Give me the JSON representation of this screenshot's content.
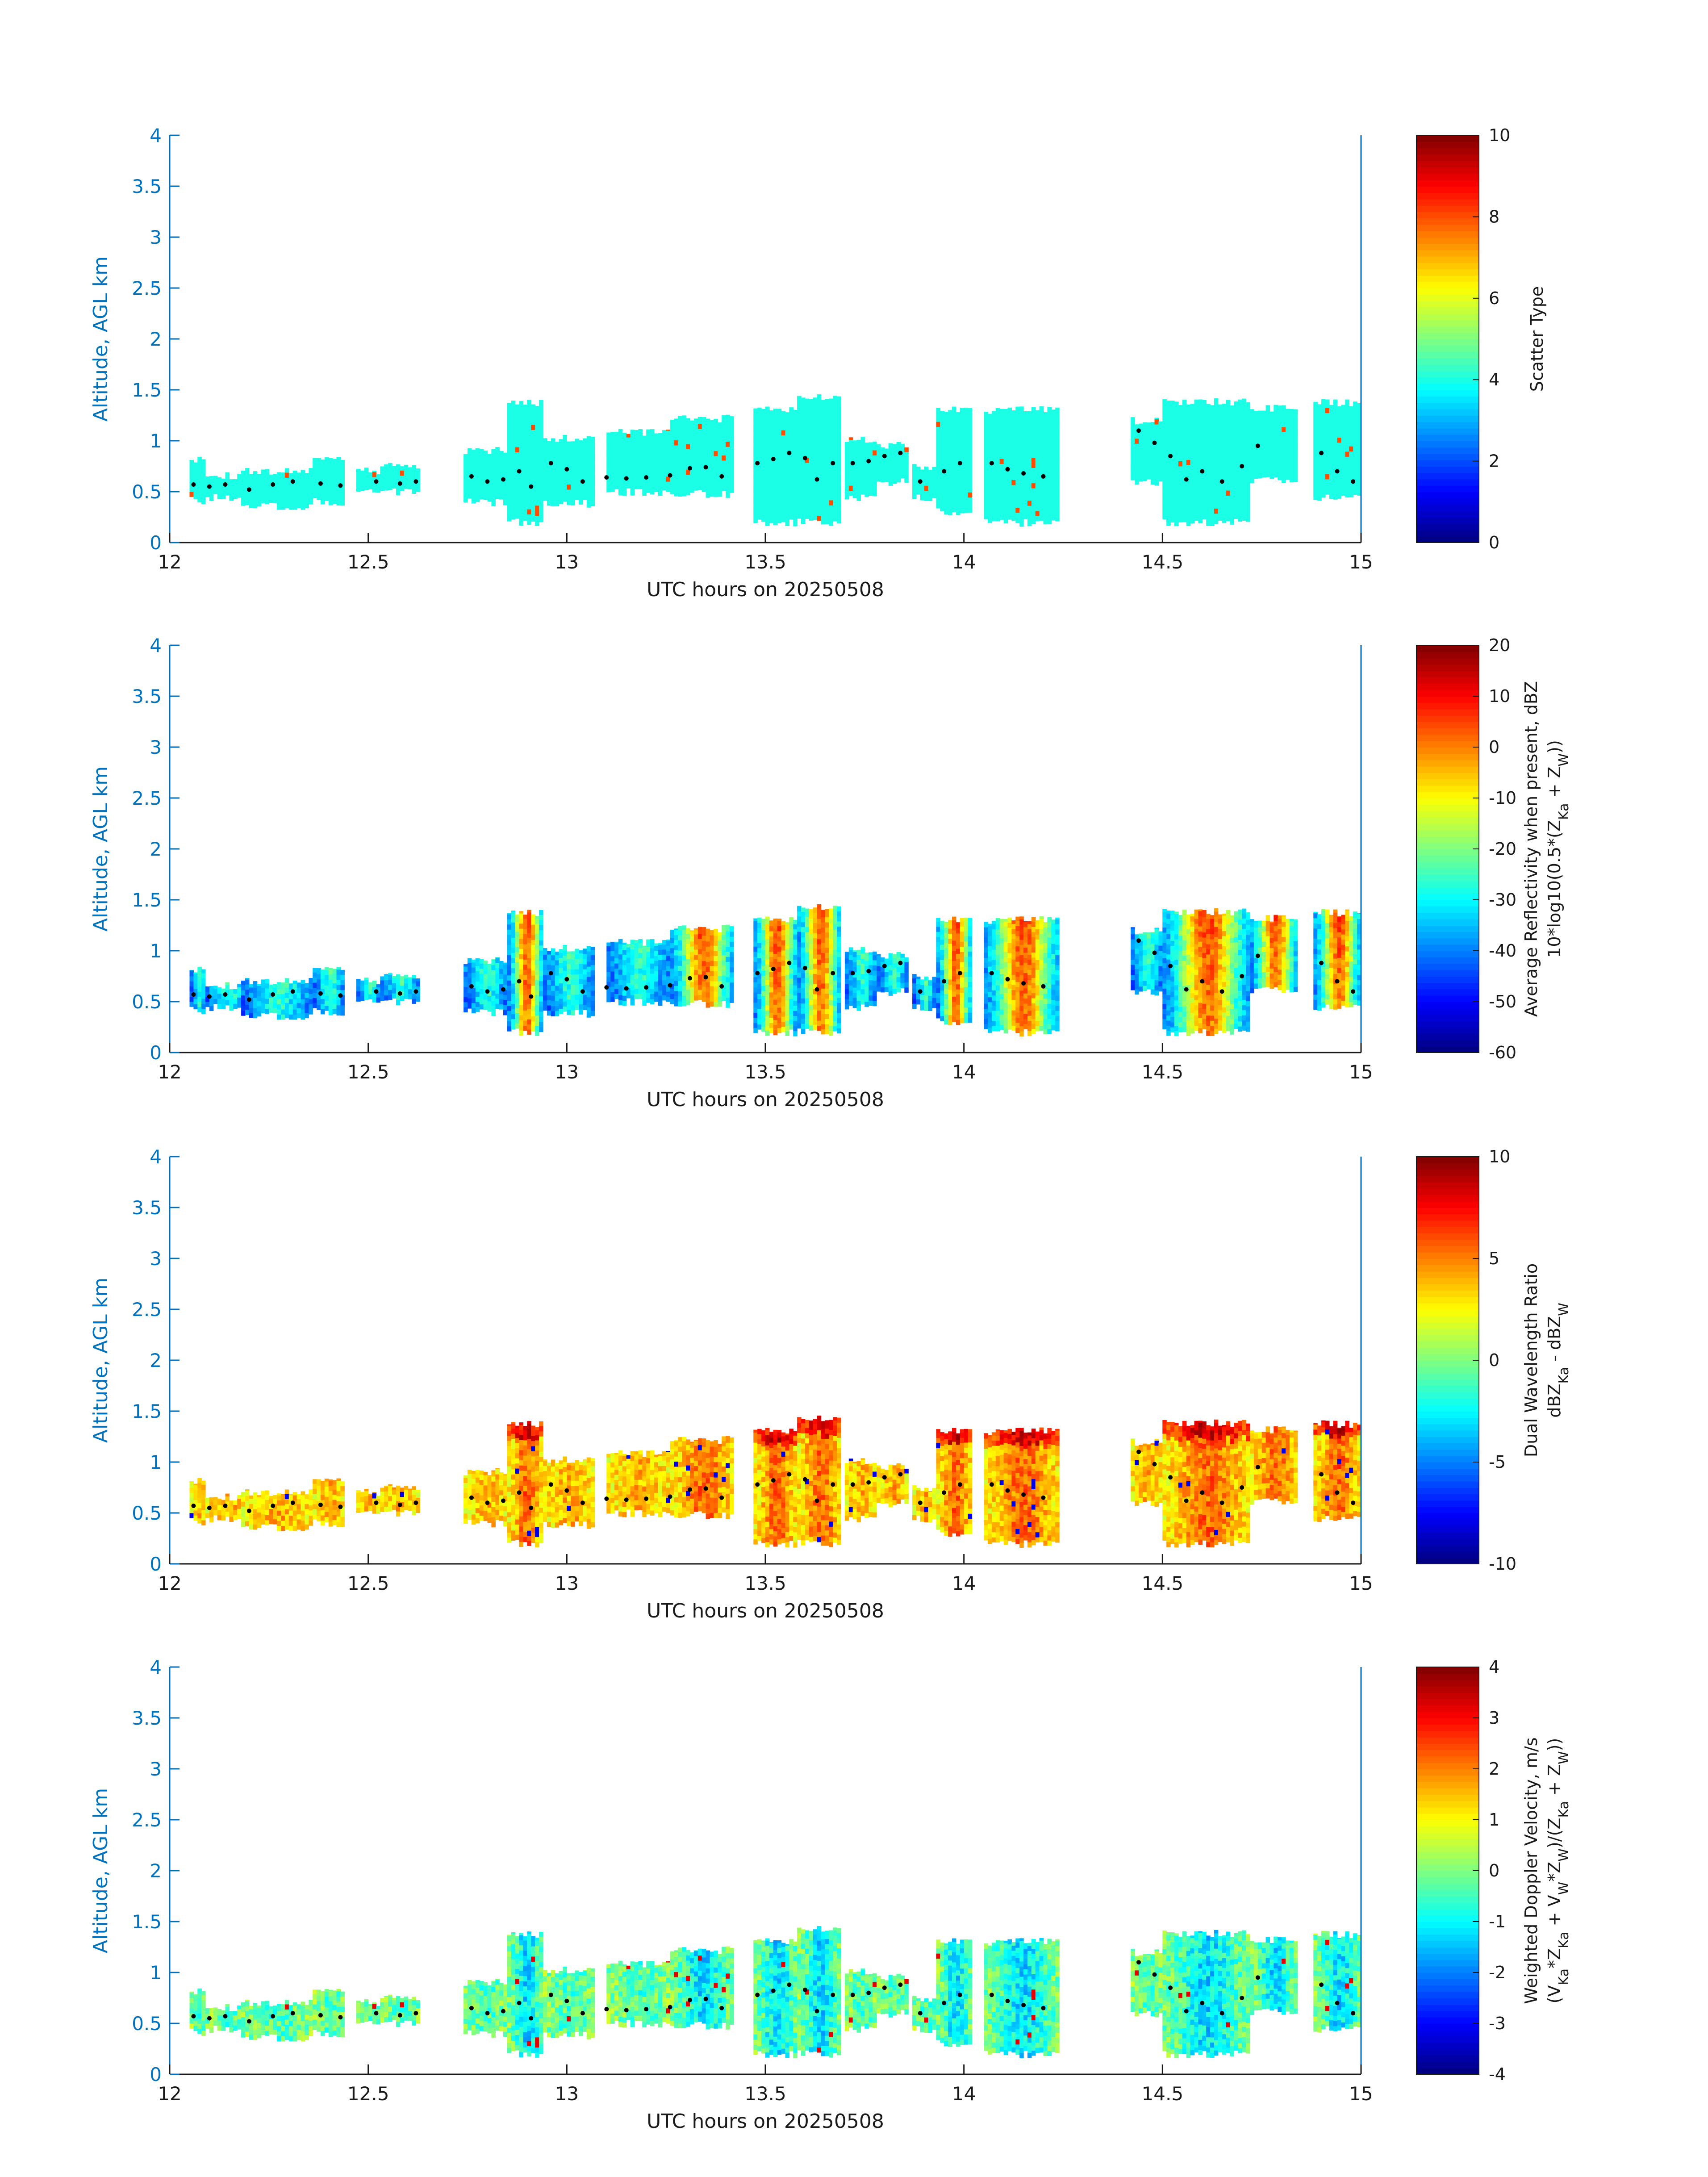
{
  "colors": {
    "axis_blue": "#0072bd",
    "frame": "#1a1a1a",
    "marker": "#000000",
    "colormap": "jet"
  },
  "chart_data": [
    {
      "type": "heatmap",
      "title": "",
      "xlabel": "UTC hours on 20250508",
      "ylabel": "Altitude, AGL km",
      "xlim": [
        12,
        15
      ],
      "ylim": [
        0,
        4
      ],
      "xticks": [
        "12",
        "12.5",
        "13",
        "13.5",
        "14",
        "14.5",
        "15"
      ],
      "yticks": [
        "0",
        "0.5",
        "1",
        "1.5",
        "2",
        "2.5",
        "3",
        "3.5",
        "4"
      ],
      "colorbar": {
        "label": "Scatter Type",
        "label_line2": "",
        "range": [
          0,
          10
        ],
        "ticks": [
          "0",
          "2",
          "4",
          "6",
          "8",
          "10"
        ]
      },
      "field": "scatter_type",
      "marker": "cloud-base dots"
    },
    {
      "type": "heatmap",
      "title": "",
      "xlabel": "UTC hours on 20250508",
      "ylabel": "Altitude, AGL km",
      "xlim": [
        12,
        15
      ],
      "ylim": [
        0,
        4
      ],
      "xticks": [
        "12",
        "12.5",
        "13",
        "13.5",
        "14",
        "14.5",
        "15"
      ],
      "yticks": [
        "0",
        "0.5",
        "1",
        "1.5",
        "2",
        "2.5",
        "3",
        "3.5",
        "4"
      ],
      "colorbar": {
        "label": "Average Reflectivity when present, dBZ",
        "label_line2": "10*log10(0.5*(Z_Ka + Z_W))",
        "range": [
          -60,
          20
        ],
        "ticks": [
          "-60",
          "-50",
          "-40",
          "-30",
          "-20",
          "-10",
          "0",
          "10",
          "20"
        ]
      },
      "field": "reflectivity",
      "marker": "cloud-base dots"
    },
    {
      "type": "heatmap",
      "title": "",
      "xlabel": "UTC hours on 20250508",
      "ylabel": "Altitude, AGL km",
      "xlim": [
        12,
        15
      ],
      "ylim": [
        0,
        4
      ],
      "xticks": [
        "12",
        "12.5",
        "13",
        "13.5",
        "14",
        "14.5",
        "15"
      ],
      "yticks": [
        "0",
        "0.5",
        "1",
        "1.5",
        "2",
        "2.5",
        "3",
        "3.5",
        "4"
      ],
      "colorbar": {
        "label": "Dual Wavelength Ratio",
        "label_line2": "dBZ_Ka - dBZ_W",
        "range": [
          -10,
          10
        ],
        "ticks": [
          "-10",
          "-5",
          "0",
          "5",
          "10"
        ]
      },
      "field": "dwr",
      "marker": "cloud-base dots"
    },
    {
      "type": "heatmap",
      "title": "",
      "xlabel": "UTC hours on 20250508",
      "ylabel": "Altitude, AGL km",
      "xlim": [
        12,
        15
      ],
      "ylim": [
        0,
        4
      ],
      "xticks": [
        "12",
        "12.5",
        "13",
        "13.5",
        "14",
        "14.5",
        "15"
      ],
      "yticks": [
        "0",
        "0.5",
        "1",
        "1.5",
        "2",
        "2.5",
        "3",
        "3.5",
        "4"
      ],
      "colorbar": {
        "label": "Weighted Doppler Velocity, m/s",
        "label_line2": "(V_Ka*Z_Ka + V_W*Z_W)/(Z_Ka + Z_W))",
        "range": [
          -4,
          4
        ],
        "ticks": [
          "-4",
          "-3",
          "-2",
          "-1",
          "0",
          "1",
          "2",
          "3",
          "4"
        ]
      },
      "field": "velocity",
      "marker": "cloud-base dots"
    }
  ],
  "cloud_segments": [
    {
      "t0": 12.05,
      "t1": 12.09,
      "bot": 0.42,
      "top": 0.82
    },
    {
      "t0": 12.09,
      "t1": 12.2,
      "bot": 0.45,
      "top": 0.66
    },
    {
      "t0": 12.18,
      "t1": 12.36,
      "bot": 0.36,
      "top": 0.7
    },
    {
      "t0": 12.36,
      "t1": 12.44,
      "bot": 0.4,
      "top": 0.83
    },
    {
      "t0": 12.47,
      "t1": 12.53,
      "bot": 0.5,
      "top": 0.7
    },
    {
      "t0": 12.53,
      "t1": 12.63,
      "bot": 0.5,
      "top": 0.75
    },
    {
      "t0": 12.74,
      "t1": 12.85,
      "bot": 0.4,
      "top": 0.9
    },
    {
      "t0": 12.85,
      "t1": 12.94,
      "bot": 0.2,
      "top": 1.38
    },
    {
      "t0": 12.94,
      "t1": 13.07,
      "bot": 0.38,
      "top": 1.02
    },
    {
      "t0": 13.1,
      "t1": 13.26,
      "bot": 0.5,
      "top": 1.08
    },
    {
      "t0": 13.26,
      "t1": 13.42,
      "bot": 0.48,
      "top": 1.22
    },
    {
      "t0": 13.47,
      "t1": 13.58,
      "bot": 0.2,
      "top": 1.3
    },
    {
      "t0": 13.58,
      "t1": 13.69,
      "bot": 0.2,
      "top": 1.42
    },
    {
      "t0": 13.7,
      "t1": 13.78,
      "bot": 0.45,
      "top": 1.0
    },
    {
      "t0": 13.78,
      "t1": 13.86,
      "bot": 0.6,
      "top": 0.95
    },
    {
      "t0": 13.87,
      "t1": 13.93,
      "bot": 0.45,
      "top": 0.75
    },
    {
      "t0": 13.93,
      "t1": 14.02,
      "bot": 0.3,
      "top": 1.3
    },
    {
      "t0": 14.05,
      "t1": 14.24,
      "bot": 0.2,
      "top": 1.3
    },
    {
      "t0": 14.42,
      "t1": 14.5,
      "bot": 0.6,
      "top": 1.2
    },
    {
      "t0": 14.5,
      "t1": 14.72,
      "bot": 0.2,
      "top": 1.38
    },
    {
      "t0": 14.72,
      "t1": 14.84,
      "bot": 0.62,
      "top": 1.32
    },
    {
      "t0": 14.88,
      "t1": 15.0,
      "bot": 0.45,
      "top": 1.37
    }
  ],
  "cloud_base_dots": [
    {
      "t": 12.06,
      "h": 0.57
    },
    {
      "t": 12.1,
      "h": 0.55
    },
    {
      "t": 12.14,
      "h": 0.57
    },
    {
      "t": 12.2,
      "h": 0.52
    },
    {
      "t": 12.26,
      "h": 0.57
    },
    {
      "t": 12.31,
      "h": 0.6
    },
    {
      "t": 12.38,
      "h": 0.58
    },
    {
      "t": 12.43,
      "h": 0.56
    },
    {
      "t": 12.52,
      "h": 0.6
    },
    {
      "t": 12.58,
      "h": 0.58
    },
    {
      "t": 12.62,
      "h": 0.6
    },
    {
      "t": 12.76,
      "h": 0.65
    },
    {
      "t": 12.8,
      "h": 0.6
    },
    {
      "t": 12.84,
      "h": 0.62
    },
    {
      "t": 12.88,
      "h": 0.7
    },
    {
      "t": 12.91,
      "h": 0.55
    },
    {
      "t": 12.96,
      "h": 0.78
    },
    {
      "t": 13.0,
      "h": 0.72
    },
    {
      "t": 13.04,
      "h": 0.6
    },
    {
      "t": 13.1,
      "h": 0.64
    },
    {
      "t": 13.15,
      "h": 0.63
    },
    {
      "t": 13.2,
      "h": 0.64
    },
    {
      "t": 13.26,
      "h": 0.66
    },
    {
      "t": 13.31,
      "h": 0.73
    },
    {
      "t": 13.35,
      "h": 0.74
    },
    {
      "t": 13.39,
      "h": 0.65
    },
    {
      "t": 13.48,
      "h": 0.78
    },
    {
      "t": 13.52,
      "h": 0.82
    },
    {
      "t": 13.56,
      "h": 0.88
    },
    {
      "t": 13.6,
      "h": 0.83
    },
    {
      "t": 13.63,
      "h": 0.62
    },
    {
      "t": 13.67,
      "h": 0.78
    },
    {
      "t": 13.72,
      "h": 0.78
    },
    {
      "t": 13.76,
      "h": 0.8
    },
    {
      "t": 13.8,
      "h": 0.85
    },
    {
      "t": 13.84,
      "h": 0.88
    },
    {
      "t": 13.89,
      "h": 0.6
    },
    {
      "t": 13.95,
      "h": 0.7
    },
    {
      "t": 13.99,
      "h": 0.78
    },
    {
      "t": 14.07,
      "h": 0.78
    },
    {
      "t": 14.11,
      "h": 0.72
    },
    {
      "t": 14.15,
      "h": 0.68
    },
    {
      "t": 14.2,
      "h": 0.65
    },
    {
      "t": 14.44,
      "h": 1.1
    },
    {
      "t": 14.48,
      "h": 0.98
    },
    {
      "t": 14.52,
      "h": 0.85
    },
    {
      "t": 14.56,
      "h": 0.62
    },
    {
      "t": 14.6,
      "h": 0.7
    },
    {
      "t": 14.65,
      "h": 0.6
    },
    {
      "t": 14.7,
      "h": 0.75
    },
    {
      "t": 14.74,
      "h": 0.95
    },
    {
      "t": 14.9,
      "h": 0.88
    },
    {
      "t": 14.94,
      "h": 0.7
    },
    {
      "t": 14.98,
      "h": 0.6
    }
  ]
}
